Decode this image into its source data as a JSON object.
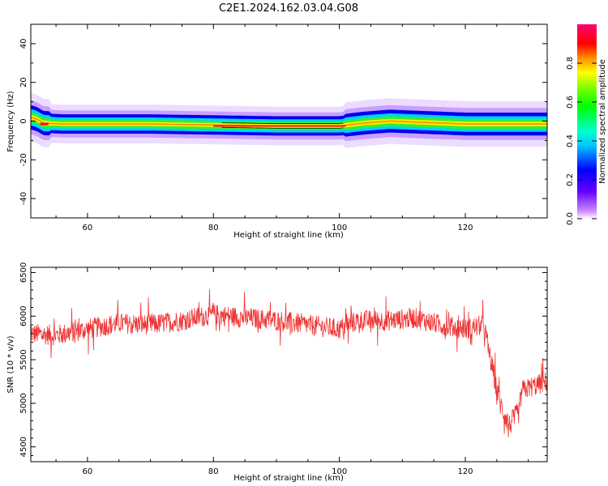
{
  "title": "C2E1.2024.162.03.04.G08",
  "chart_data": [
    {
      "type": "heatmap",
      "xlabel": "Height of straight line (km)",
      "ylabel": "Frequency (Hz)",
      "xlim": [
        51,
        133
      ],
      "ylim": [
        -50,
        50
      ],
      "xticks": [
        "60",
        "80",
        "100",
        "120"
      ],
      "yticks": [
        "40",
        "20",
        "0",
        "-20",
        "-40"
      ],
      "xtick_values": [
        60,
        80,
        100,
        120
      ],
      "ytick_values": [
        40,
        20,
        0,
        -20,
        -40
      ],
      "ridge_center_hz": [
        [
          51,
          2
        ],
        [
          52,
          1
        ],
        [
          53,
          -1
        ],
        [
          56,
          -1.5
        ],
        [
          70,
          -1.5
        ],
        [
          80,
          -2
        ],
        [
          90,
          -2.5
        ],
        [
          100,
          -2.5
        ],
        [
          104,
          -1
        ],
        [
          108,
          0
        ],
        [
          112,
          -0.5
        ],
        [
          120,
          -1.5
        ],
        [
          133,
          -1.5
        ]
      ],
      "colorbar": {
        "label": "Normalized spectral amplitude",
        "ticks": [
          "0.0",
          "0.2",
          "0.4",
          "0.6",
          "0.8"
        ],
        "tick_values": [
          0.0,
          0.2,
          0.4,
          0.6,
          0.8
        ],
        "range": [
          0,
          1
        ]
      }
    },
    {
      "type": "line",
      "xlabel": "Height of straight line (km)",
      "ylabel": "SNR (10 * v/v)",
      "xlim": [
        51,
        133
      ],
      "ylim": [
        4330,
        6560
      ],
      "xticks": [
        "60",
        "80",
        "100",
        "120"
      ],
      "yticks": [
        "6500",
        "6000",
        "5500",
        "5000",
        "4500"
      ],
      "xtick_values": [
        60,
        80,
        100,
        120
      ],
      "ytick_values": [
        6500,
        6000,
        5500,
        5000,
        4500
      ],
      "color": "#ee3333",
      "series_trend": [
        [
          51,
          5800
        ],
        [
          55,
          5780
        ],
        [
          60,
          5850
        ],
        [
          65,
          5920
        ],
        [
          70,
          5900
        ],
        [
          75,
          5950
        ],
        [
          80,
          6020
        ],
        [
          85,
          5980
        ],
        [
          90,
          5950
        ],
        [
          95,
          5900
        ],
        [
          100,
          5850
        ],
        [
          103,
          5950
        ],
        [
          108,
          5950
        ],
        [
          112,
          5980
        ],
        [
          116,
          5900
        ],
        [
          120,
          5850
        ],
        [
          123,
          5900
        ],
        [
          124,
          5500
        ],
        [
          125.5,
          5000
        ],
        [
          127,
          4750
        ],
        [
          128.5,
          4900
        ],
        [
          129,
          5150
        ],
        [
          131,
          5200
        ],
        [
          133,
          5250
        ]
      ]
    }
  ]
}
